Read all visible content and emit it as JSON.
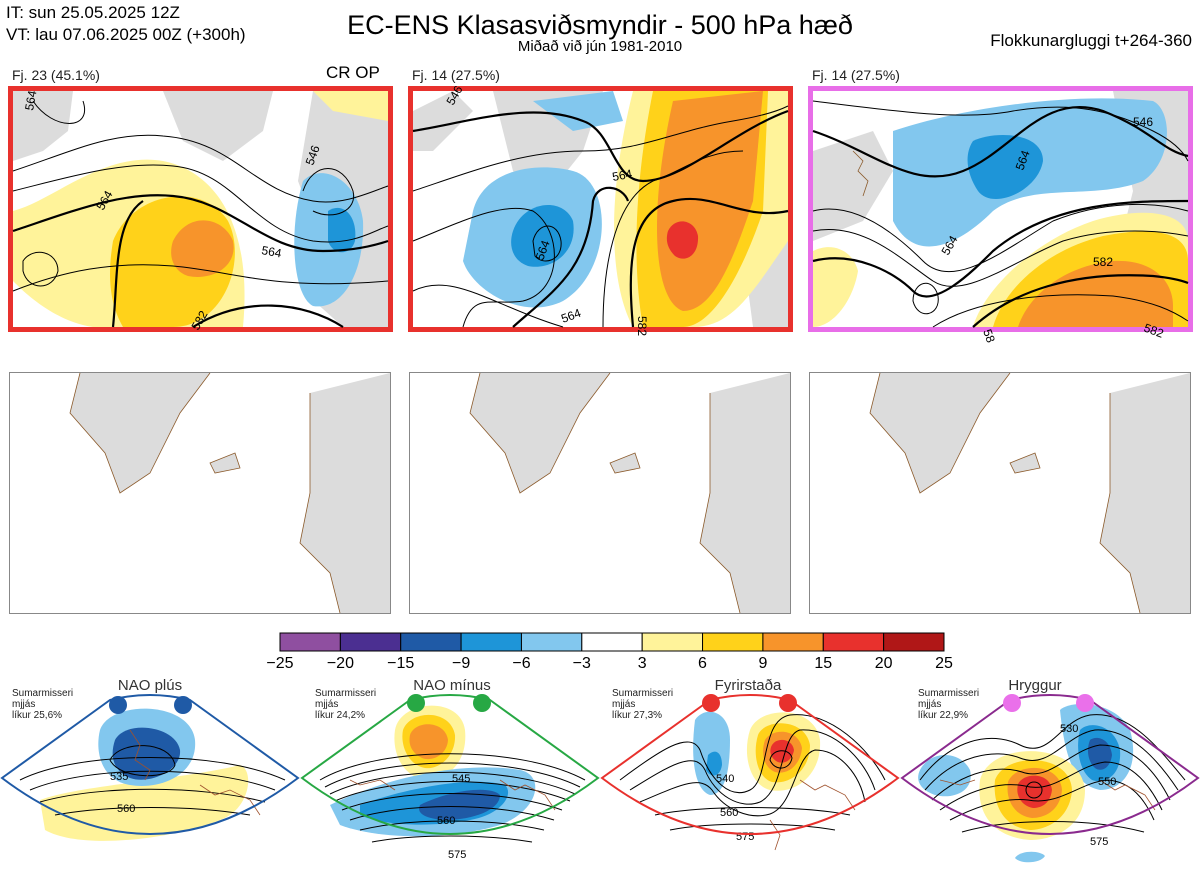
{
  "header": {
    "init_time": "IT: sun 25.05.2025 12Z",
    "valid_time": "VT: lau 07.06.2025 00Z  (+300h)",
    "title": "EC-ENS Klasasviðsmyndir - 500 hPa hæð",
    "subtitle": "Miðað við jún 1981-2010",
    "window": "Flokkunargluggi t+264-360"
  },
  "clusters": [
    {
      "label": "Fj. 23 (45.1%)",
      "tag": "CR OP",
      "frame_color": "#e8312d",
      "contour_labels": [
        "564",
        "546",
        "564",
        "564",
        "582"
      ]
    },
    {
      "label": "Fj. 14 (27.5%)",
      "frame_color": "#e8312d",
      "contour_labels": [
        "546",
        "564",
        "564",
        "564",
        "582"
      ]
    },
    {
      "label": "Fj. 14 (27.5%)",
      "frame_color": "#e86ee8",
      "contour_labels": [
        "546",
        "564",
        "564",
        "582",
        "582",
        "58"
      ]
    }
  ],
  "colorbar": {
    "ticks": [
      "−25",
      "−20",
      "−15",
      "−9",
      "−6",
      "−3",
      "3",
      "6",
      "9",
      "15",
      "20",
      "25"
    ],
    "colors": [
      "#8f4fa0",
      "#4b2f91",
      "#1f5aa6",
      "#1e95d8",
      "#82c7ee",
      "#ffffff",
      "#fff39a",
      "#ffd21a",
      "#f7942b",
      "#e8312d",
      "#b01717"
    ]
  },
  "regimes": [
    {
      "name": "NAO plús",
      "desc": [
        "Sumarmisseri",
        "mjjás",
        "líkur 25,6%"
      ],
      "color": "#1f5aa6",
      "labels": [
        "535",
        "560"
      ]
    },
    {
      "name": "NAO mínus",
      "desc": [
        "Sumarmisseri",
        "mjjás",
        "líkur 24,2%"
      ],
      "color": "#27a844",
      "labels": [
        "545",
        "560",
        "575"
      ]
    },
    {
      "name": "Fyrirstaða",
      "desc": [
        "Sumarmisseri",
        "mjjás",
        "líkur 27,3%"
      ],
      "color": "#e8312d",
      "labels": [
        "540",
        "560",
        "575"
      ]
    },
    {
      "name": "Hryggur",
      "desc": [
        "Sumarmisseri",
        "mjjás",
        "líkur 22,9%"
      ],
      "color": "#8a2a8e",
      "dot_color": "#ea70ea",
      "labels": [
        "530",
        "550",
        "575"
      ]
    }
  ]
}
